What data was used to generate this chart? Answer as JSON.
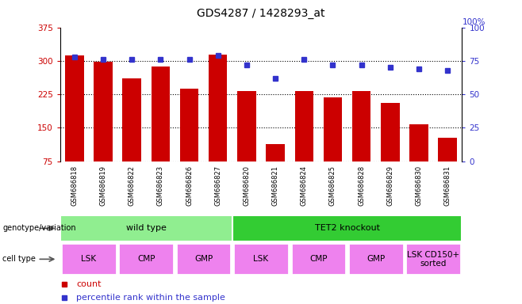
{
  "title": "GDS4287 / 1428293_at",
  "samples": [
    "GSM686818",
    "GSM686819",
    "GSM686822",
    "GSM686823",
    "GSM686826",
    "GSM686827",
    "GSM686820",
    "GSM686821",
    "GSM686824",
    "GSM686825",
    "GSM686828",
    "GSM686829",
    "GSM686830",
    "GSM686831"
  ],
  "counts": [
    312,
    297,
    260,
    288,
    238,
    313,
    232,
    113,
    232,
    218,
    232,
    205,
    157,
    128
  ],
  "percentiles": [
    78,
    76,
    76,
    76,
    76,
    79,
    72,
    62,
    76,
    72,
    72,
    70,
    69,
    68
  ],
  "ylim_left": [
    75,
    375
  ],
  "ylim_right": [
    0,
    100
  ],
  "yticks_left": [
    75,
    150,
    225,
    300,
    375
  ],
  "yticks_right": [
    0,
    25,
    50,
    75,
    100
  ],
  "bar_color": "#cc0000",
  "dot_color": "#3333cc",
  "grid_color": "black",
  "left_tick_color": "#cc0000",
  "right_tick_color": "#3333cc",
  "genotype_groups": [
    {
      "label": "wild type",
      "start": 0,
      "end": 6,
      "color": "#90ee90"
    },
    {
      "label": "TET2 knockout",
      "start": 6,
      "end": 14,
      "color": "#33cc33"
    }
  ],
  "cell_groups": [
    {
      "label": "LSK",
      "start": 0,
      "end": 2
    },
    {
      "label": "CMP",
      "start": 2,
      "end": 4
    },
    {
      "label": "GMP",
      "start": 4,
      "end": 6
    },
    {
      "label": "LSK",
      "start": 6,
      "end": 8
    },
    {
      "label": "CMP",
      "start": 8,
      "end": 10
    },
    {
      "label": "GMP",
      "start": 10,
      "end": 12
    },
    {
      "label": "LSK CD150+\nsorted",
      "start": 12,
      "end": 14
    }
  ],
  "cell_color": "#ee82ee",
  "sample_bg_color": "#cccccc",
  "legend_count_color": "#cc0000",
  "legend_dot_color": "#3333cc",
  "bar_bottom": 75
}
